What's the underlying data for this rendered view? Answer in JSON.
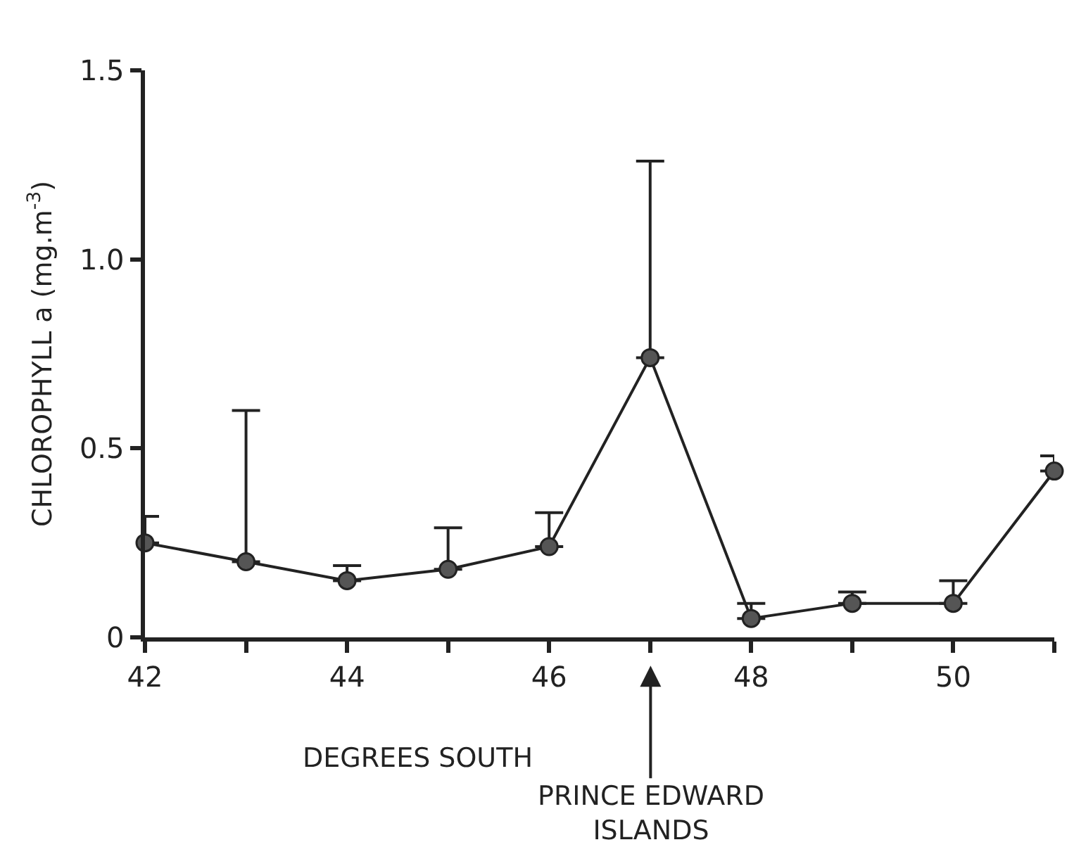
{
  "chart_data": {
    "type": "line",
    "xlabel": "DEGREES SOUTH",
    "ylabel": "CHLOROPHYLL a (mg.m$^{-3}$)",
    "x": [
      42,
      43,
      44,
      45,
      46,
      47,
      48,
      49,
      50,
      51
    ],
    "series": [
      {
        "color": "#222222",
        "values": [
          0.25,
          0.2,
          0.15,
          0.18,
          0.24,
          0.74,
          0.05,
          0.09,
          0.09,
          0.44
        ],
        "errors": [
          [
            0.25,
            0.32
          ],
          [
            0.2,
            0.6
          ],
          [
            0.15,
            0.19
          ],
          [
            0.18,
            0.29
          ],
          [
            0.24,
            0.33
          ],
          [
            0.74,
            1.26
          ],
          [
            0.05,
            0.09
          ],
          [
            0.09,
            0.12
          ],
          [
            0.09,
            0.15
          ],
          [
            0.44,
            0.48
          ]
        ]
      }
    ],
    "xlim": [
      42,
      51
    ],
    "xticks": [
      42,
      {
        "value": 43,
        "label": null
      },
      44,
      {
        "value": 45,
        "label": null
      },
      46,
      {
        "value": 47,
        "label": null
      },
      48,
      {
        "value": 49,
        "label": null
      },
      50,
      {
        "value": 51,
        "label": null
      }
    ],
    "ylim": [
      0,
      1.5
    ],
    "yticks": [
      0,
      {
        "value": 0.5,
        "label": "0.5"
      },
      {
        "value": 1,
        "label": "1.0"
      },
      1.5
    ],
    "annotations": [
      "PRINCE EDWARD\nISLANDS"
    ],
    "marker": "circle",
    "line_style": "solid"
  }
}
